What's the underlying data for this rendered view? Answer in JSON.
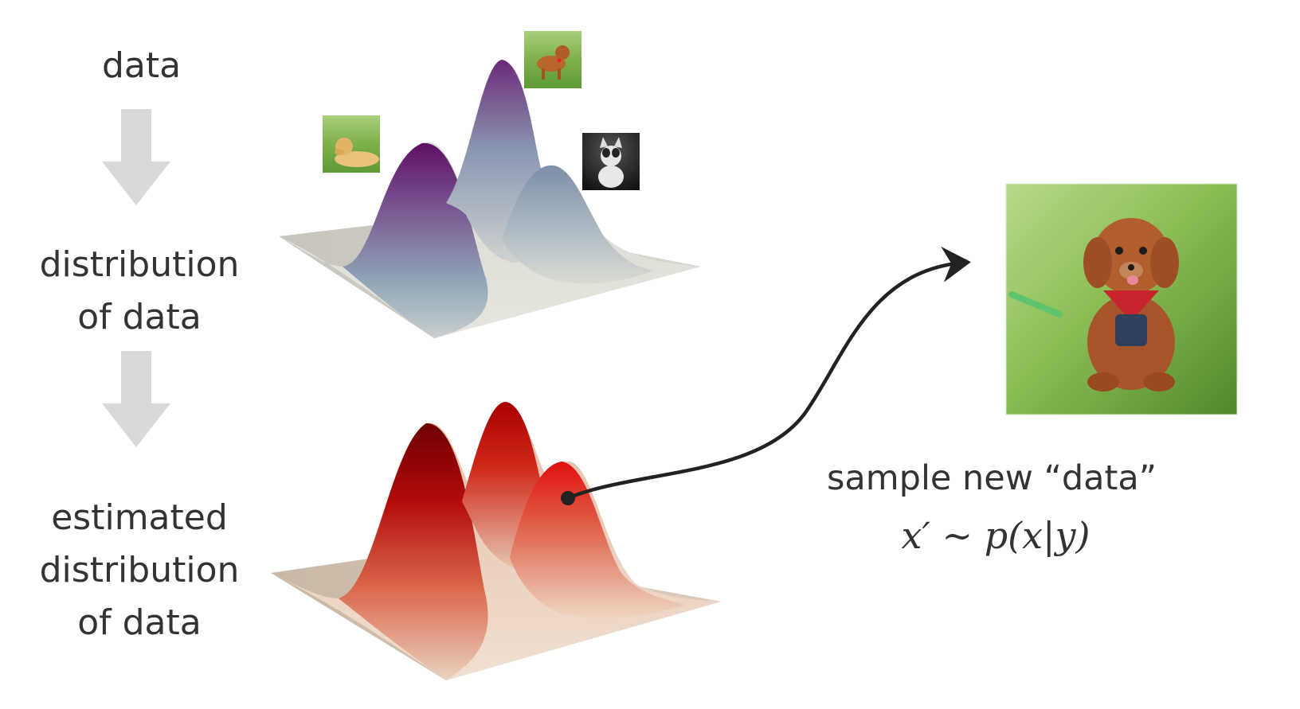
{
  "labels": {
    "data": "data",
    "distribution_line1": "distribution",
    "distribution_line2": "of data",
    "estimated_line1": "estimated",
    "estimated_line2": "distribution",
    "estimated_line3": "of data",
    "sample": "sample new “data”",
    "formula": "x′ ∼ p(x|y)"
  },
  "images": [
    {
      "name": "golden-retriever-image"
    },
    {
      "name": "puppy-walking-image"
    },
    {
      "name": "french-bulldog-image"
    },
    {
      "name": "sampled-poodle-image"
    }
  ],
  "colors": {
    "text": "#333333",
    "arrow": "#d9d9d9",
    "top_surface_peak": "#6a1a6e",
    "top_surface_mid": "#8aa3b8",
    "top_surface_base": "#d6d6cc",
    "bottom_surface_peak": "#a00000",
    "bottom_surface_mid": "#d9533a",
    "bottom_surface_base": "#e6d2c0",
    "sample_curve": "#222222"
  }
}
